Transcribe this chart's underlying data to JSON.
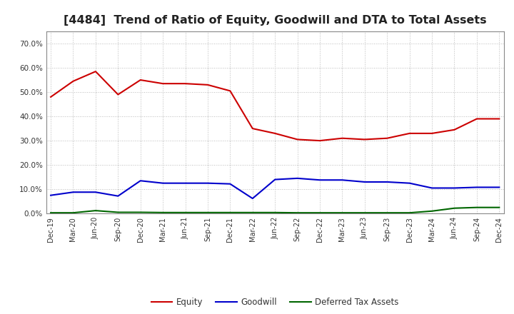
{
  "title": "[4484]  Trend of Ratio of Equity, Goodwill and DTA to Total Assets",
  "x_labels": [
    "Dec-19",
    "Mar-20",
    "Jun-20",
    "Sep-20",
    "Dec-20",
    "Mar-21",
    "Jun-21",
    "Sep-21",
    "Dec-21",
    "Mar-22",
    "Jun-22",
    "Sep-22",
    "Dec-22",
    "Mar-23",
    "Jun-23",
    "Sep-23",
    "Dec-23",
    "Mar-24",
    "Jun-24",
    "Sep-24",
    "Dec-24"
  ],
  "equity": [
    0.48,
    0.545,
    0.585,
    0.49,
    0.55,
    0.535,
    0.535,
    0.53,
    0.505,
    0.35,
    0.33,
    0.305,
    0.3,
    0.31,
    0.305,
    0.31,
    0.33,
    0.33,
    0.345,
    0.39,
    0.39
  ],
  "goodwill": [
    0.075,
    0.088,
    0.088,
    0.072,
    0.135,
    0.125,
    0.125,
    0.125,
    0.122,
    0.062,
    0.14,
    0.145,
    0.138,
    0.138,
    0.13,
    0.13,
    0.125,
    0.105,
    0.105,
    0.108,
    0.108
  ],
  "dta": [
    0.003,
    0.003,
    0.012,
    0.005,
    0.005,
    0.004,
    0.004,
    0.004,
    0.004,
    0.004,
    0.004,
    0.003,
    0.003,
    0.003,
    0.003,
    0.003,
    0.003,
    0.01,
    0.022,
    0.025,
    0.025
  ],
  "equity_color": "#cc0000",
  "goodwill_color": "#0000cc",
  "dta_color": "#006600",
  "ylim": [
    0.0,
    0.75
  ],
  "yticks": [
    0.0,
    0.1,
    0.2,
    0.3,
    0.4,
    0.5,
    0.6,
    0.7
  ],
  "background_color": "#ffffff",
  "grid_color": "#aaaaaa",
  "title_fontsize": 11.5,
  "legend_labels": [
    "Equity",
    "Goodwill",
    "Deferred Tax Assets"
  ]
}
